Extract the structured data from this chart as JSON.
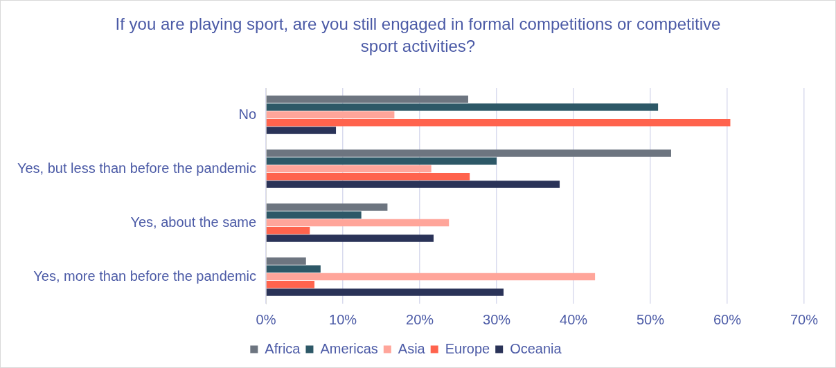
{
  "chart_data": {
    "type": "bar",
    "orientation": "horizontal",
    "title": "If you are playing sport, are you still engaged in formal competitions or competitive sport activities?",
    "categories": [
      "No",
      "Yes, but less than before the pandemic",
      "Yes, about the same",
      "Yes, more than before the pandemic"
    ],
    "series": [
      {
        "name": "Africa",
        "color": "#6d7580",
        "values": [
          26.3,
          52.7,
          15.8,
          5.2
        ]
      },
      {
        "name": "Americas",
        "color": "#2d5867",
        "values": [
          51.0,
          30.0,
          12.4,
          7.1
        ]
      },
      {
        "name": "Asia",
        "color": "#ffa59a",
        "values": [
          16.7,
          21.5,
          23.8,
          42.8
        ]
      },
      {
        "name": "Europe",
        "color": "#ff634d",
        "values": [
          60.4,
          26.5,
          5.7,
          6.3
        ]
      },
      {
        "name": "Oceania",
        "color": "#2a3358",
        "values": [
          9.1,
          38.2,
          21.8,
          30.9
        ]
      }
    ],
    "xlim": [
      0,
      70
    ],
    "xticks": [
      {
        "value": 0,
        "label": "0%"
      },
      {
        "value": 10,
        "label": "10%"
      },
      {
        "value": 20,
        "label": "20%"
      },
      {
        "value": 30,
        "label": "30%"
      },
      {
        "value": 40,
        "label": "40%"
      },
      {
        "value": 50,
        "label": "50%"
      },
      {
        "value": 60,
        "label": "60%"
      },
      {
        "value": 70,
        "label": "70%"
      }
    ],
    "grid": "x",
    "legend": "bottom"
  }
}
